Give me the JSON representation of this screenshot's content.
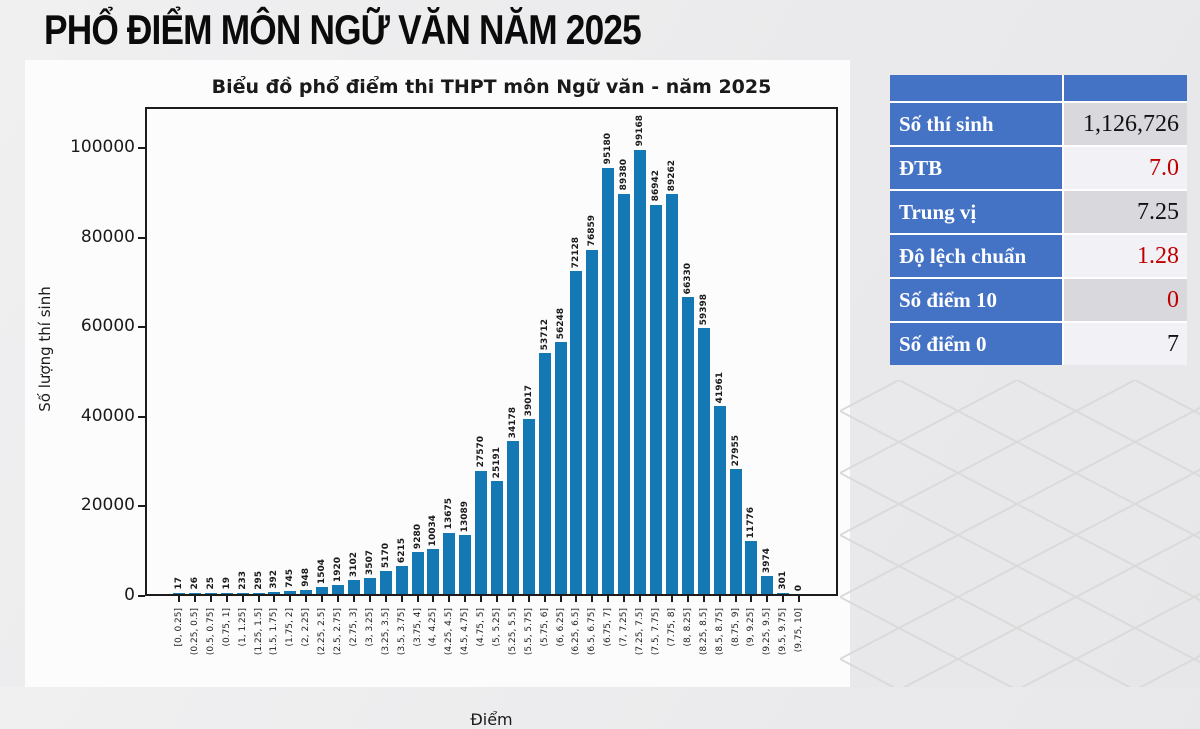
{
  "page": {
    "title": "PHỔ ĐIỂM MÔN NGỮ VĂN NĂM 2025"
  },
  "chart_data": {
    "type": "bar",
    "title": "Biểu đồ phổ điểm thi THPT môn Ngữ văn - năm 2025",
    "xlabel": "Điểm",
    "ylabel": "Số lượng thí sinh",
    "bar_color": "#1478b4",
    "grid": false,
    "ylim": [
      0,
      109000
    ],
    "yticks": [
      0,
      20000,
      40000,
      60000,
      80000,
      100000
    ],
    "categories": [
      "[0, 0.25]",
      "(0.25, 0.5]",
      "(0.5, 0.75]",
      "(0.75, 1]",
      "(1, 1.25]",
      "(1.25, 1.5]",
      "(1.5, 1.75]",
      "(1.75, 2]",
      "(2, 2.25]",
      "(2.25, 2.5]",
      "(2.5, 2.75]",
      "(2.75, 3]",
      "(3, 3.25]",
      "(3.25, 3.5]",
      "(3.5, 3.75]",
      "(3.75, 4]",
      "(4, 4.25]",
      "(4.25, 4.5]",
      "(4.5, 4.75]",
      "(4.75, 5]",
      "(5, 5.25]",
      "(5.25, 5.5]",
      "(5.5, 5.75]",
      "(5.75, 6]",
      "(6, 6.25]",
      "(6.25, 6.5]",
      "(6.5, 6.75]",
      "(6.75, 7]",
      "(7, 7.25]",
      "(7.25, 7.5]",
      "(7.5, 7.75]",
      "(7.75, 8]",
      "(8, 8.25]",
      "(8.25, 8.5]",
      "(8.5, 8.75]",
      "(8.75, 9]",
      "(9, 9.25]",
      "(9.25, 9.5]",
      "(9.5, 9.75]",
      "(9.75, 10]"
    ],
    "values": [
      17,
      26,
      25,
      19,
      233,
      295,
      392,
      745,
      948,
      1504,
      1920,
      3102,
      3507,
      5170,
      6215,
      9280,
      10034,
      13675,
      13089,
      27570,
      25191,
      34178,
      39017,
      53712,
      56248,
      72128,
      76859,
      95180,
      89380,
      99168,
      86942,
      89262,
      66330,
      59398,
      41961,
      27955,
      11776,
      3974,
      301,
      0
    ]
  },
  "stats_table": {
    "rows": [
      {
        "label": "Số thí sinh",
        "value": "1,126,726",
        "value_color": "black"
      },
      {
        "label": "ĐTB",
        "value": "7.0",
        "value_color": "red"
      },
      {
        "label": "Trung vị",
        "value": "7.25",
        "value_color": "black"
      },
      {
        "label": "Độ lệch chuẩn",
        "value": "1.28",
        "value_color": "red"
      },
      {
        "label": "Số điểm 10",
        "value": "0",
        "value_color": "red"
      },
      {
        "label": "Số điểm 0",
        "value": "7",
        "value_color": "black"
      }
    ],
    "colors": {
      "header_bg": "#4472c4",
      "label_bg": "#4472c4",
      "row_alt_bg": "#d8d8dd",
      "row_bg": "#f1f1f6",
      "red": "#c00000",
      "black": "#111111"
    }
  }
}
